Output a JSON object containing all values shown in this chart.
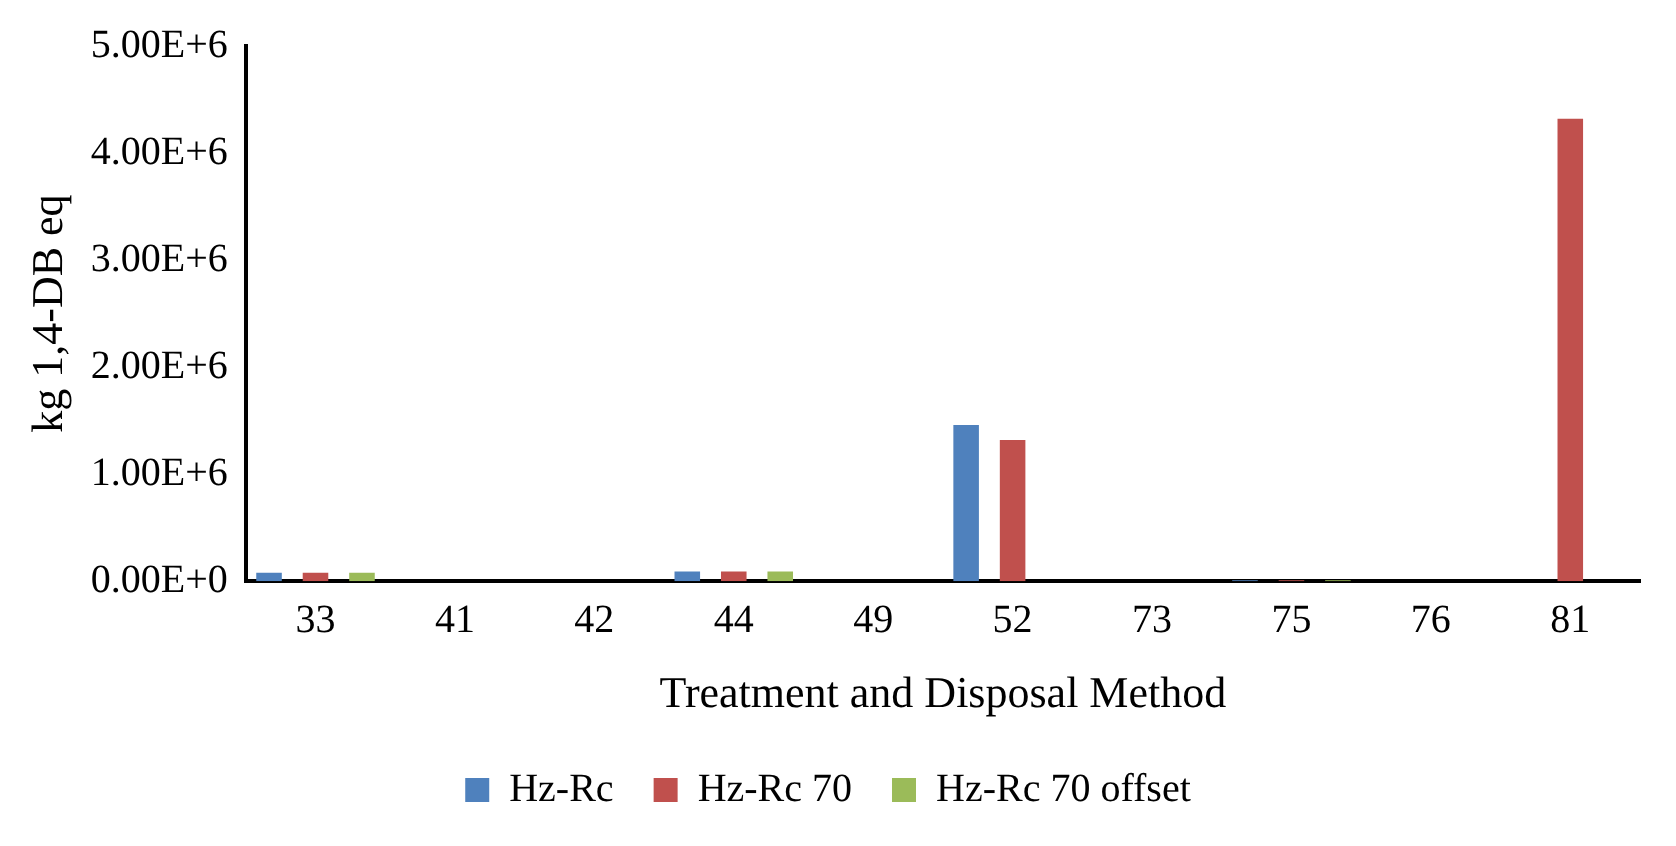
{
  "chart_data": {
    "type": "bar",
    "xlabel": "Treatment and Disposal Method",
    "ylabel": "kg 1,4-DB eq",
    "categories": [
      "33",
      "41",
      "42",
      "44",
      "49",
      "52",
      "73",
      "75",
      "76",
      "81"
    ],
    "series": [
      {
        "name": "Hz-Rc",
        "color": "#4f81bd",
        "values": [
          80000,
          0,
          0,
          90000,
          0,
          1460000,
          0,
          10000,
          0,
          0
        ]
      },
      {
        "name": "Hz-Rc 70",
        "color": "#c0504d",
        "values": [
          80000,
          0,
          0,
          90000,
          0,
          1320000,
          0,
          10000,
          0,
          4320000
        ]
      },
      {
        "name": "Hz-Rc 70 offset",
        "color": "#9bbb59",
        "values": [
          80000,
          0,
          0,
          90000,
          0,
          0,
          0,
          10000,
          0,
          0
        ]
      }
    ],
    "ylim": [
      0,
      5000000
    ],
    "yticks": [
      {
        "value": 0,
        "label": "0.00E+0"
      },
      {
        "value": 1000000,
        "label": "1.00E+6"
      },
      {
        "value": 2000000,
        "label": "2.00E+6"
      },
      {
        "value": 3000000,
        "label": "3.00E+6"
      },
      {
        "value": 4000000,
        "label": "4.00E+6"
      },
      {
        "value": 5000000,
        "label": "5.00E+6"
      }
    ],
    "grid": false,
    "legend": "bottom"
  }
}
